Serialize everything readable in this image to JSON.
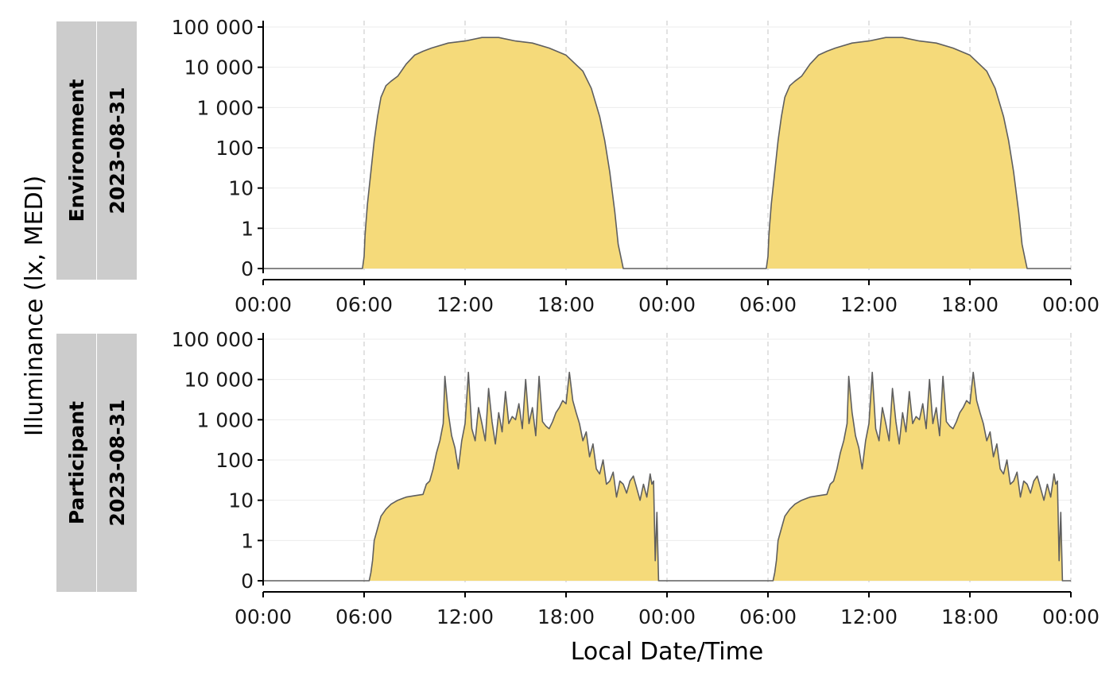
{
  "chart_data": {
    "type": "area",
    "xlabel": "Local Date/Time",
    "ylabel": "Illuminance (lx, MEDI)",
    "y_scale": "symlog",
    "y_ticks": [
      0,
      1,
      10,
      100,
      1000,
      10000,
      100000
    ],
    "y_tick_labels": [
      "0",
      "1",
      "10",
      "100",
      "1 000",
      "10 000",
      "100 000"
    ],
    "x_range_hours": [
      0,
      48
    ],
    "x_tick_labels": [
      "00:00",
      "06:00",
      "12:00",
      "18:00",
      "00:00",
      "06:00",
      "12:00",
      "18:00",
      "00:00"
    ],
    "grid": true,
    "fill_color": "#f5da7a",
    "line_color": "#5f5f5f",
    "panels": [
      {
        "strip": [
          "Environment",
          "2023-08-31"
        ],
        "series": {
          "x_hours": [
            0,
            5.9,
            6.0,
            6.05,
            6.1,
            6.2,
            6.4,
            6.6,
            6.8,
            7.0,
            7.3,
            7.6,
            8.0,
            8.5,
            9.0,
            9.5,
            10.0,
            11.0,
            12.0,
            13.0,
            14.0,
            15.0,
            16.0,
            17.0,
            18.0,
            19.0,
            19.5,
            20.0,
            20.3,
            20.6,
            20.9,
            21.1,
            21.3,
            21.4,
            21.5,
            22.0,
            24.0,
            29.9,
            30.0,
            30.05,
            30.1,
            30.2,
            30.4,
            30.6,
            30.8,
            31.0,
            31.3,
            31.6,
            32.0,
            32.5,
            33.0,
            33.5,
            34.0,
            35.0,
            36.0,
            37.0,
            38.0,
            39.0,
            40.0,
            41.0,
            42.0,
            43.0,
            43.5,
            44.0,
            44.3,
            44.6,
            44.9,
            45.1,
            45.3,
            45.4,
            45.5,
            46.0,
            48.0
          ],
          "y": [
            0,
            0,
            0.3,
            0.8,
            1.2,
            4,
            25,
            150,
            600,
            1800,
            3500,
            4500,
            6000,
            12000,
            20000,
            25000,
            30000,
            40000,
            45000,
            55000,
            55000,
            45000,
            40000,
            30000,
            20000,
            8000,
            3000,
            600,
            150,
            25,
            2.5,
            0.6,
            0.2,
            0,
            0,
            0,
            0,
            0,
            0.3,
            0.8,
            1.2,
            4,
            25,
            150,
            600,
            1800,
            3500,
            4500,
            6000,
            12000,
            20000,
            25000,
            30000,
            40000,
            45000,
            55000,
            55000,
            45000,
            40000,
            30000,
            20000,
            8000,
            3000,
            600,
            150,
            25,
            2.5,
            0.6,
            0.2,
            0,
            0,
            0,
            0
          ]
        }
      },
      {
        "strip": [
          "Participant",
          "2023-08-31"
        ],
        "series": {
          "x_hours": [
            0,
            6.3,
            6.4,
            6.5,
            6.6,
            6.8,
            7.0,
            7.3,
            7.6,
            8.0,
            8.5,
            9.0,
            9.5,
            9.7,
            9.9,
            10.1,
            10.3,
            10.5,
            10.7,
            10.8,
            11.0,
            11.2,
            11.4,
            11.6,
            11.8,
            12.0,
            12.2,
            12.4,
            12.6,
            12.8,
            13.0,
            13.2,
            13.4,
            13.6,
            13.8,
            14.0,
            14.2,
            14.4,
            14.6,
            14.8,
            15.0,
            15.2,
            15.4,
            15.6,
            15.8,
            16.0,
            16.2,
            16.4,
            16.6,
            16.8,
            17.0,
            17.2,
            17.4,
            17.6,
            17.8,
            18.0,
            18.2,
            18.4,
            18.6,
            18.8,
            19.0,
            19.2,
            19.4,
            19.6,
            19.8,
            20.0,
            20.2,
            20.4,
            20.6,
            20.8,
            21.0,
            21.2,
            21.4,
            21.6,
            21.8,
            22.0,
            22.2,
            22.4,
            22.6,
            22.8,
            23.0,
            23.1,
            23.2,
            23.3,
            23.4,
            23.5,
            24.0,
            30.3,
            30.4,
            30.5,
            30.6,
            30.8,
            31.0,
            31.3,
            31.6,
            32.0,
            32.5,
            33.0,
            33.5,
            33.7,
            33.9,
            34.1,
            34.3,
            34.5,
            34.7,
            34.8,
            35.0,
            35.2,
            35.4,
            35.6,
            35.8,
            36.0,
            36.2,
            36.4,
            36.6,
            36.8,
            37.0,
            37.2,
            37.4,
            37.6,
            37.8,
            38.0,
            38.2,
            38.4,
            38.6,
            38.8,
            39.0,
            39.2,
            39.4,
            39.6,
            39.8,
            40.0,
            40.2,
            40.4,
            40.6,
            40.8,
            41.0,
            41.2,
            41.4,
            41.6,
            41.8,
            42.0,
            42.2,
            42.4,
            42.6,
            42.8,
            43.0,
            43.2,
            43.4,
            43.6,
            43.8,
            44.0,
            44.2,
            44.4,
            44.6,
            44.8,
            45.0,
            45.2,
            45.4,
            45.6,
            45.8,
            46.0,
            46.2,
            46.4,
            46.6,
            46.8,
            47.0,
            47.1,
            47.2,
            47.3,
            47.4,
            47.5,
            48.0
          ],
          "y": [
            0,
            0,
            0.2,
            0.5,
            1,
            2,
            4,
            6,
            8,
            10,
            12,
            13,
            14,
            25,
            30,
            60,
            150,
            300,
            800,
            12000,
            1500,
            400,
            200,
            60,
            300,
            800,
            15000,
            600,
            300,
            2000,
            800,
            300,
            6000,
            900,
            250,
            1500,
            500,
            5000,
            800,
            1200,
            1000,
            2500,
            600,
            10000,
            800,
            2000,
            400,
            12000,
            900,
            700,
            600,
            900,
            1500,
            2000,
            3000,
            2500,
            15000,
            3000,
            1500,
            800,
            300,
            500,
            120,
            250,
            60,
            45,
            100,
            25,
            30,
            50,
            12,
            30,
            25,
            15,
            30,
            40,
            20,
            10,
            25,
            12,
            45,
            25,
            30,
            0.5,
            5,
            0,
            0,
            0,
            0.2,
            0.5,
            1,
            2,
            4,
            6,
            8,
            10,
            12,
            13,
            14,
            25,
            30,
            60,
            150,
            300,
            800,
            12000,
            1500,
            400,
            200,
            60,
            300,
            800,
            15000,
            600,
            300,
            2000,
            800,
            300,
            6000,
            900,
            250,
            1500,
            500,
            5000,
            800,
            1200,
            1000,
            2500,
            600,
            10000,
            800,
            2000,
            400,
            12000,
            900,
            700,
            600,
            900,
            1500,
            2000,
            3000,
            2500,
            15000,
            3000,
            1500,
            800,
            300,
            500,
            120,
            250,
            60,
            45,
            100,
            25,
            30,
            50,
            12,
            30,
            25,
            15,
            30,
            40,
            20,
            10,
            25,
            12,
            45,
            25,
            30,
            0.5,
            5,
            0,
            0
          ]
        }
      }
    ]
  }
}
